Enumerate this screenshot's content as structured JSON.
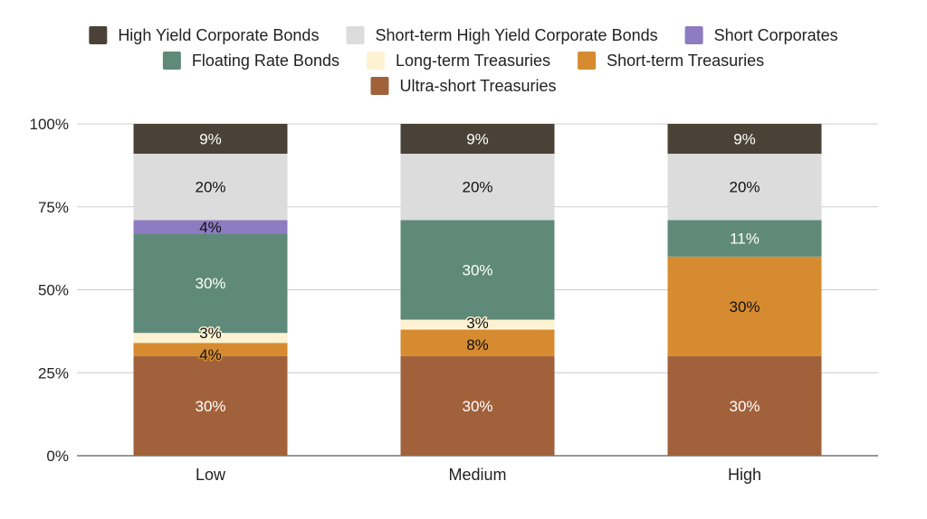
{
  "chart_data": {
    "type": "bar",
    "stacked": true,
    "title": "",
    "xlabel": "",
    "ylabel": "",
    "ylim": [
      0,
      100
    ],
    "yticks": [
      "0%",
      "25%",
      "50%",
      "75%",
      "100%"
    ],
    "grid": true,
    "legend_position": "top",
    "categories": [
      "Low",
      "Medium",
      "High"
    ],
    "series": [
      {
        "name": "High Yield Corporate Bonds",
        "color": "#4b4237",
        "values": [
          9,
          9,
          9
        ]
      },
      {
        "name": "Short-term High Yield Corporate Bonds",
        "color": "#dcdcdc",
        "values": [
          20,
          20,
          20
        ]
      },
      {
        "name": "Short Corporates",
        "color": "#8d7cc2",
        "values": [
          4,
          0,
          0
        ]
      },
      {
        "name": "Floating Rate Bonds",
        "color": "#5f8a7a",
        "values": [
          30,
          30,
          11
        ]
      },
      {
        "name": "Long-term Treasuries",
        "color": "#fdf2d2",
        "values": [
          3,
          3,
          0
        ]
      },
      {
        "name": "Short-term Treasuries",
        "color": "#d68b31",
        "values": [
          4,
          8,
          30
        ]
      },
      {
        "name": "Ultra-short Treasuries",
        "color": "#a1613b",
        "values": [
          30,
          30,
          30
        ]
      }
    ]
  }
}
